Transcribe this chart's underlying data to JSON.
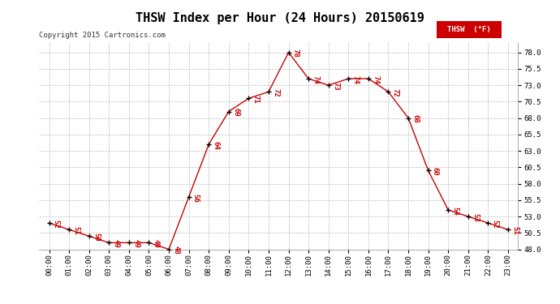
{
  "title": "THSW Index per Hour (24 Hours) 20150619",
  "copyright": "Copyright 2015 Cartronics.com",
  "legend_label": "THSW  (°F)",
  "hours": [
    0,
    1,
    2,
    3,
    4,
    5,
    6,
    7,
    8,
    9,
    10,
    11,
    12,
    13,
    14,
    15,
    16,
    17,
    18,
    19,
    20,
    21,
    22,
    23
  ],
  "values": [
    52,
    51,
    50,
    49,
    49,
    49,
    48,
    56,
    64,
    69,
    71,
    72,
    78,
    74,
    73,
    74,
    74,
    72,
    68,
    60,
    54,
    53,
    52,
    51
  ],
  "ylim_min": 48.0,
  "ylim_max": 79.5,
  "ytick_major": 2.5,
  "line_color": "#cc0000",
  "marker_color": "#000000",
  "label_color": "#cc0000",
  "bg_color": "#ffffff",
  "grid_color": "#bbbbbb",
  "title_fontsize": 11,
  "label_fontsize": 6.5,
  "copyright_fontsize": 6.5,
  "tick_fontsize": 6.5,
  "legend_bg": "#cc0000",
  "legend_text_color": "#ffffff"
}
